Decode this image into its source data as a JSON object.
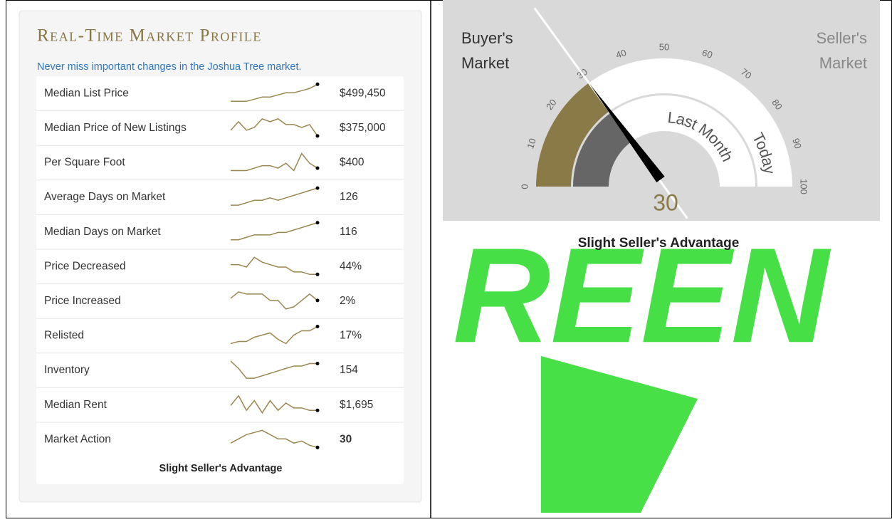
{
  "profile": {
    "title": "Real-Time Market Profile",
    "subtitle": "Never miss important changes in the Joshua Tree market.",
    "rows": [
      {
        "label": "Median List Price",
        "value": "$499,450",
        "spark": [
          1,
          1,
          1,
          2,
          3,
          3,
          4,
          5,
          5,
          6,
          7,
          9
        ]
      },
      {
        "label": "Median Price of New Listings",
        "value": "$375,000",
        "spark": [
          4,
          7,
          4,
          5,
          8,
          7,
          8,
          6,
          6,
          5,
          6,
          2
        ]
      },
      {
        "label": "Per Square Foot",
        "value": "$400",
        "spark": [
          1,
          1,
          1,
          2,
          3,
          3,
          2,
          4,
          1,
          8,
          4,
          2
        ]
      },
      {
        "label": "Average Days on Market",
        "value": "126",
        "spark": [
          1,
          1,
          2,
          3,
          3,
          4,
          3,
          4,
          5,
          6,
          7,
          8
        ]
      },
      {
        "label": "Median Days on Market",
        "value": "116",
        "spark": [
          1,
          1,
          2,
          3,
          3,
          3,
          4,
          4,
          5,
          6,
          7,
          8
        ]
      },
      {
        "label": "Price Decreased",
        "value": "44%",
        "spark": [
          5,
          5,
          4,
          8,
          6,
          5,
          4,
          4,
          2,
          2,
          1,
          1
        ]
      },
      {
        "label": "Price Increased",
        "value": "2%",
        "spark": [
          5,
          8,
          7,
          7,
          7,
          4,
          4,
          0,
          1,
          4,
          7,
          4
        ]
      },
      {
        "label": "Relisted",
        "value": "17%",
        "spark": [
          1,
          2,
          2,
          4,
          5,
          6,
          3,
          1,
          5,
          7,
          7,
          9
        ]
      },
      {
        "label": "Inventory",
        "value": "154",
        "spark": [
          8,
          5,
          1,
          1,
          2,
          3,
          4,
          5,
          6,
          6,
          7,
          7
        ]
      },
      {
        "label": "Median Rent",
        "value": "$1,695",
        "spark": [
          4,
          8,
          2,
          6,
          1,
          6,
          2,
          5,
          3,
          3,
          2,
          2
        ]
      },
      {
        "label": "Market Action",
        "value": "30",
        "spark": [
          2,
          4,
          6,
          7,
          8,
          6,
          4,
          4,
          2,
          3,
          1,
          0
        ]
      }
    ],
    "footer": "Slight Seller's Advantage"
  },
  "gauge": {
    "left_label": [
      "Buyer's",
      "Market"
    ],
    "right_label": [
      "Seller's",
      "Market"
    ],
    "ticks": [
      0,
      10,
      20,
      30,
      40,
      50,
      60,
      70,
      80,
      90,
      100
    ],
    "today": 30,
    "last_month": 30,
    "today_label": "Today",
    "last_month_label": "Last Month",
    "value_text": "30",
    "caption": "Slight Seller's Advantage"
  },
  "watermark": "REEN"
}
